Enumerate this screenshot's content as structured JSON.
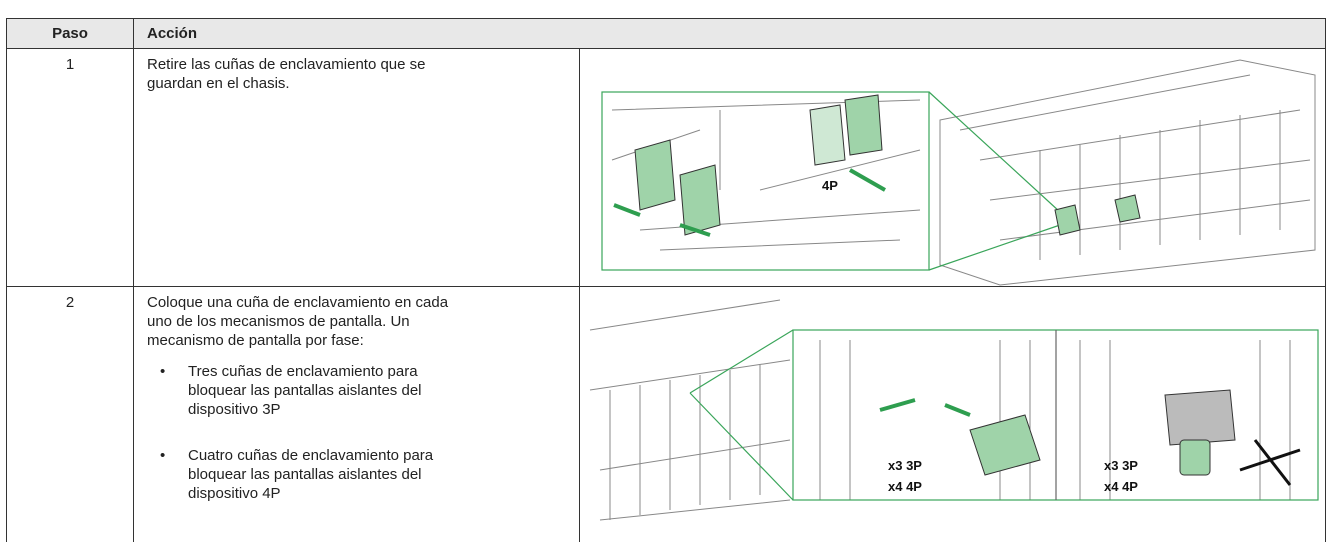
{
  "table": {
    "header": [
      "Paso",
      "Acción"
    ],
    "rows": [
      {
        "step": "1",
        "lines": [
          "Retire las cuñas de enclavamiento que se",
          "guardan en el chasis."
        ],
        "bullets": [],
        "figure_labels": [
          "4P"
        ]
      },
      {
        "step": "2",
        "lines": [
          "Coloque una cuña de enclavamiento en cada",
          "uno de los mecanismos de pantalla. Un",
          "mecanismo de pantalla por fase:"
        ],
        "bullets": [
          [
            "Tres cuñas de enclavamiento para",
            "bloquear las pantallas aislantes del",
            "dispositivo 3P"
          ],
          [
            "Cuatro cuñas de enclavamiento para",
            "bloquear las pantallas aislantes del",
            "dispositivo 4P"
          ]
        ],
        "figure_labels": [
          "x3 3P",
          "x4 4P",
          "x3 3P",
          "x4 4P"
        ]
      }
    ]
  }
}
